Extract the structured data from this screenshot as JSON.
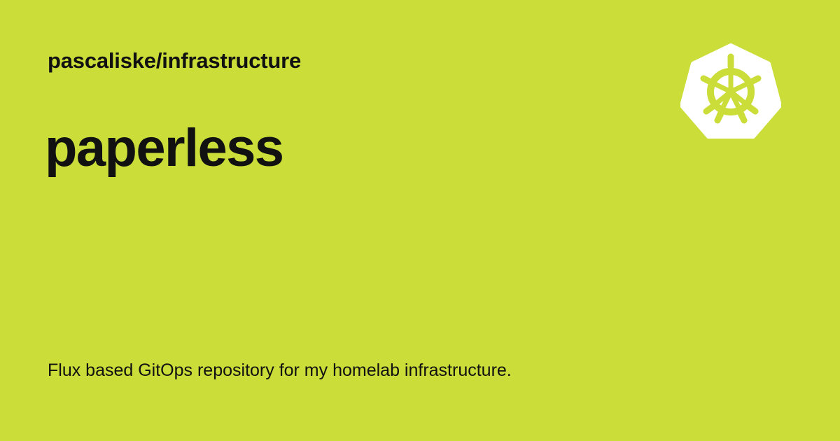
{
  "card": {
    "repository": "pascaliske/infrastructure",
    "title": "paperless",
    "description": "Flux based GitOps repository for my homelab infrastructure.",
    "logo_icon": "kubernetes-helm-icon",
    "colors": {
      "background": "#cbdd38",
      "text": "#111111",
      "logo_fill": "#ffffff"
    }
  }
}
